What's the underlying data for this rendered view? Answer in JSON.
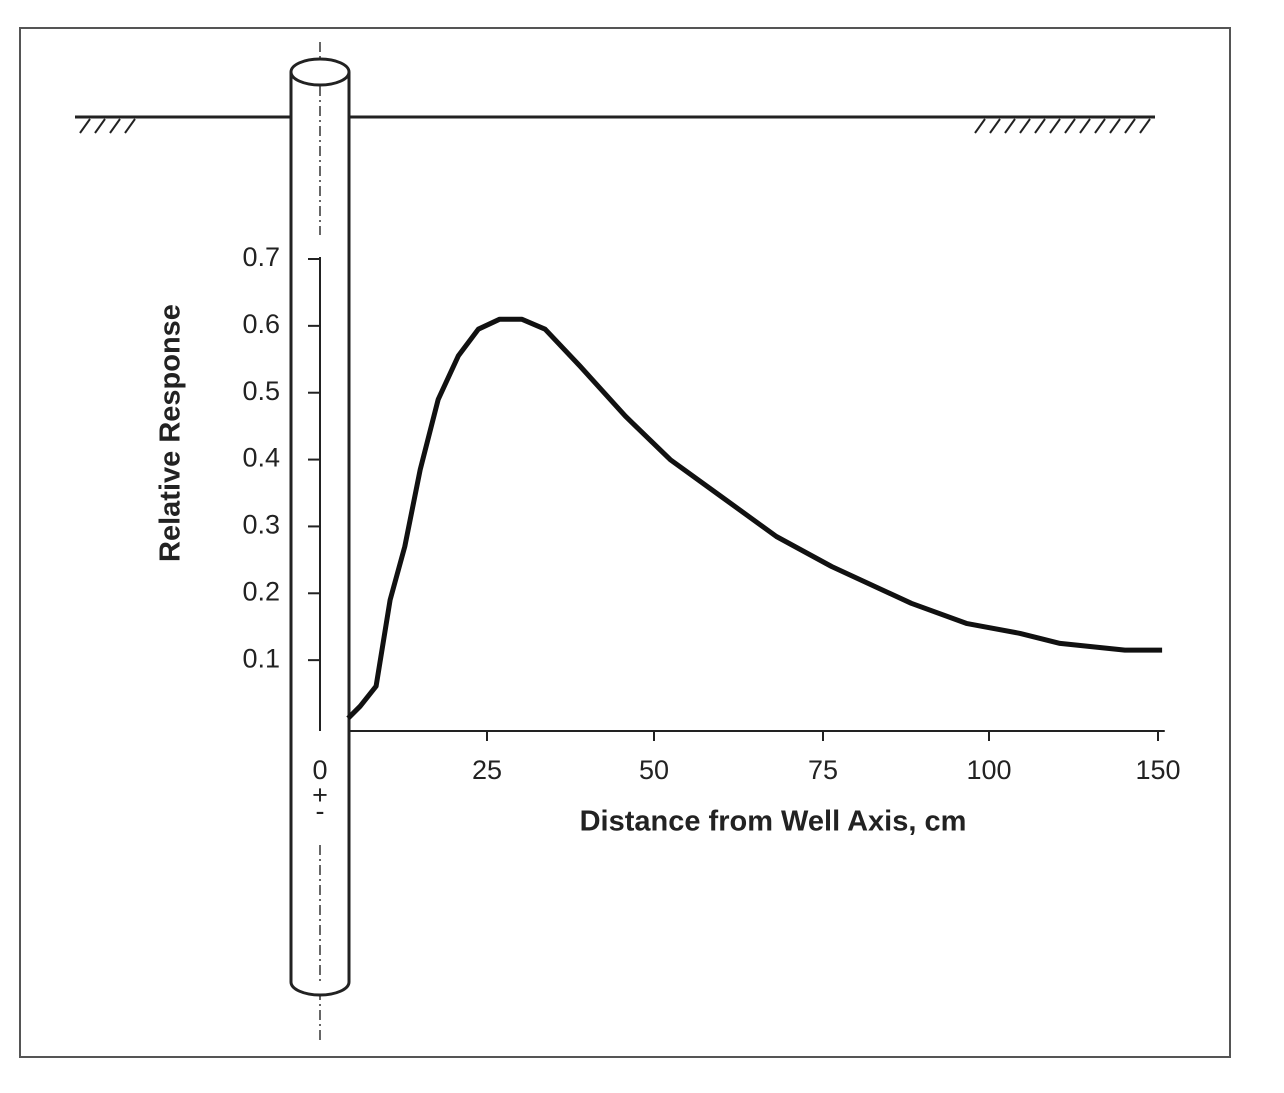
{
  "chart_data": {
    "type": "line",
    "x_label": "Distance from Well Axis, cm",
    "y_label": "Relative Response",
    "annotations": [
      "+",
      "-"
    ],
    "x": [
      4.2,
      6.0,
      8.4,
      10.5,
      12.7,
      15.0,
      17.7,
      20.7,
      23.7,
      26.9,
      30.2,
      33.7,
      38.9,
      45.7,
      52.4,
      59.9,
      68.1,
      76.3,
      88.3,
      96.6,
      109.2,
      121,
      140.2,
      151.2
    ],
    "values": [
      0.013,
      0.031,
      0.061,
      0.19,
      0.27,
      0.385,
      0.49,
      0.555,
      0.595,
      0.61,
      0.61,
      0.595,
      0.54,
      0.465,
      0.4,
      0.345,
      0.285,
      0.24,
      0.185,
      0.155,
      0.14,
      0.125,
      0.115,
      0.115
    ],
    "color": "#111111",
    "xlim": [
      0,
      152
    ],
    "xticks": [
      0,
      25,
      50,
      75,
      100,
      150
    ],
    "ylim": [
      0,
      0.7
    ],
    "yticks": [
      0.1,
      0.2,
      0.3,
      0.4,
      0.5,
      0.6,
      0.7
    ]
  }
}
